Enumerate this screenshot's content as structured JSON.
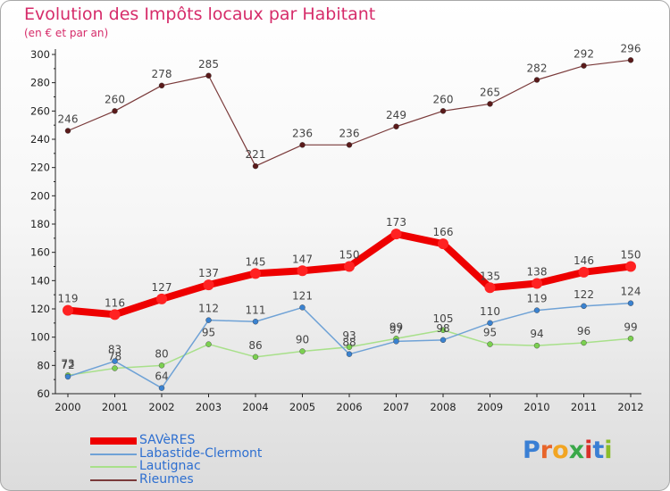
{
  "title": "Evolution des Impôts locaux par Habitant",
  "subtitle": "(en € et par an)",
  "logo": {
    "text": "Proxiti",
    "colors": [
      "#3a7fd4",
      "#e8652a",
      "#f2a522",
      "#3aa84a",
      "#d9302a",
      "#3a7fd4",
      "#8bbd2a"
    ]
  },
  "colors": {
    "title": "#d62c6a",
    "legend_text": "#2e6fd0",
    "axis": "#222222",
    "tick_label": "#222222"
  },
  "chart_data": {
    "type": "line",
    "title": "Evolution des Impôts locaux par Habitant",
    "subtitle": "(en € et par an)",
    "x": [
      "2000",
      "2001",
      "2002",
      "2003",
      "2004",
      "2005",
      "2006",
      "2007",
      "2008",
      "2009",
      "2010",
      "2011",
      "2012"
    ],
    "ylim": [
      60,
      300
    ],
    "yticks": [
      "60",
      "80",
      "100",
      "120",
      "140",
      "160",
      "180",
      "200",
      "220",
      "240",
      "260",
      "280",
      "300"
    ],
    "grid": false,
    "legend_position": "bottom-left",
    "series": [
      {
        "name": "SAVèRES",
        "color": "#ee0000",
        "marker": "#ff2222",
        "width": 8,
        "values": [
          119,
          116,
          127,
          137,
          145,
          147,
          150,
          173,
          166,
          135,
          138,
          146,
          150
        ],
        "labels": [
          "119",
          "116",
          "127",
          "137",
          "145",
          "147",
          "150",
          "173",
          "166",
          "135",
          "138",
          "146",
          "150"
        ]
      },
      {
        "name": "Labastide-Clermont",
        "color": "#6fa2d6",
        "marker": "#3a82d0",
        "width": 1.5,
        "values": [
          72,
          83,
          64,
          112,
          111,
          121,
          88,
          97,
          98,
          110,
          119,
          122,
          124
        ],
        "labels": [
          "72",
          "83",
          "64",
          "112",
          "111",
          "121",
          "88",
          "97",
          "98",
          "110",
          "119",
          "122",
          "124"
        ]
      },
      {
        "name": "Lautignac",
        "color": "#a8e08a",
        "marker": "#7bd050",
        "width": 1.5,
        "values": [
          73,
          78,
          80,
          95,
          86,
          90,
          93,
          99,
          105,
          95,
          94,
          96,
          99
        ],
        "labels": [
          "73",
          "78",
          "80",
          "95",
          "86",
          "90",
          "93",
          "99",
          "105",
          "95",
          "94",
          "96",
          "99"
        ]
      },
      {
        "name": "Rieumes",
        "color": "#7a3a3a",
        "marker": "#5a1a1a",
        "width": 1.2,
        "values": [
          246,
          260,
          278,
          285,
          221,
          236,
          236,
          249,
          260,
          265,
          282,
          292,
          296
        ],
        "labels": [
          "246",
          "260",
          "278",
          "285",
          "221",
          "236",
          "236",
          "249",
          "260",
          "265",
          "282",
          "292",
          "296"
        ]
      }
    ]
  }
}
